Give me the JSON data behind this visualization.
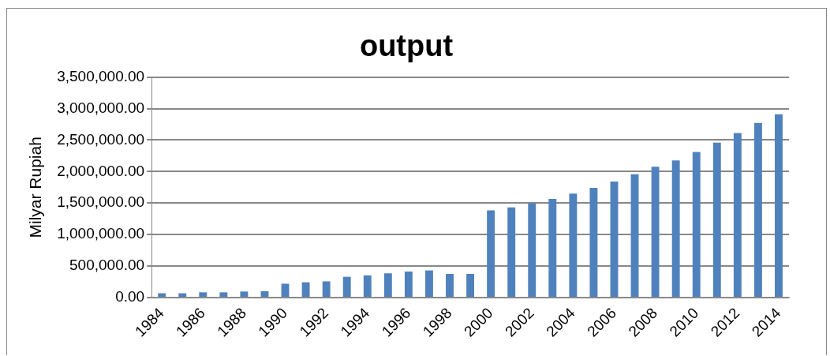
{
  "chart_data": {
    "type": "bar",
    "title": "output",
    "ylabel": "Milyar Rupiah",
    "categories": [
      "1984",
      null,
      "1986",
      null,
      "1988",
      null,
      "1990",
      null,
      "1992",
      null,
      "1994",
      null,
      "1996",
      null,
      "1998",
      null,
      "2000",
      null,
      "2002",
      null,
      "2004",
      null,
      "2006",
      null,
      "2008",
      null,
      "2010",
      null,
      "2012",
      null,
      "2014"
    ],
    "values": [
      69000,
      69000,
      83000,
      83000,
      96000,
      101000,
      220000,
      243000,
      257000,
      330000,
      353000,
      385000,
      413000,
      431000,
      376000,
      376000,
      1385000,
      1430000,
      1498000,
      1566000,
      1651000,
      1742000,
      1841000,
      1958000,
      2076000,
      2175000,
      2310000,
      2459000,
      2612000,
      2770000,
      2910000
    ],
    "color": "#4f81bd",
    "ylim": [
      0,
      3500000
    ],
    "yticks": [
      {
        "value": 0,
        "label": "0.00"
      },
      {
        "value": 500000,
        "label": "500,000.00"
      },
      {
        "value": 1000000,
        "label": "1,000,000.00"
      },
      {
        "value": 1500000,
        "label": "1,500,000.00"
      },
      {
        "value": 2000000,
        "label": "2,000,000.00"
      },
      {
        "value": 2500000,
        "label": "2,500,000.00"
      },
      {
        "value": 3000000,
        "label": "3,000,000.00"
      },
      {
        "value": 3500000,
        "label": "3,500,000.00"
      }
    ],
    "grid": "y"
  }
}
